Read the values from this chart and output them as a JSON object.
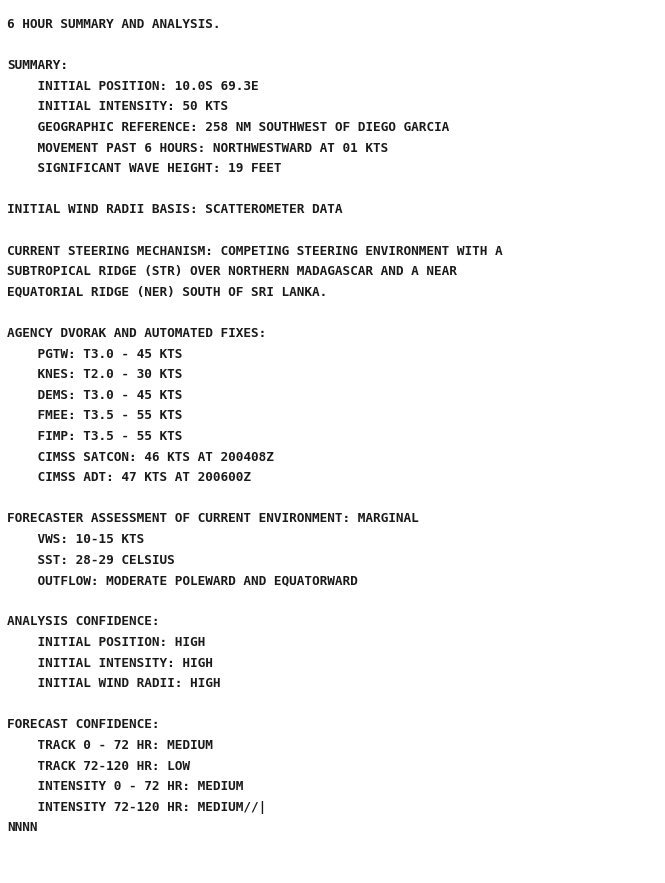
{
  "background_color": "#ffffff",
  "text_color": "#1a1a1a",
  "font_family": "DejaVu Sans Mono",
  "font_size": 9.2,
  "fig_width": 6.65,
  "fig_height": 8.83,
  "dpi": 100,
  "lines": [
    {
      "text": "6 HOUR SUMMARY AND ANALYSIS.",
      "indent": false
    },
    {
      "text": "",
      "indent": false
    },
    {
      "text": "SUMMARY:",
      "indent": false
    },
    {
      "text": "INITIAL POSITION: 10.0S 69.3E",
      "indent": true
    },
    {
      "text": "INITIAL INTENSITY: 50 KTS",
      "indent": true
    },
    {
      "text": "GEOGRAPHIC REFERENCE: 258 NM SOUTHWEST OF DIEGO GARCIA",
      "indent": true
    },
    {
      "text": "MOVEMENT PAST 6 HOURS: NORTHWESTWARD AT 01 KTS",
      "indent": true
    },
    {
      "text": "SIGNIFICANT WAVE HEIGHT: 19 FEET",
      "indent": true
    },
    {
      "text": "",
      "indent": false
    },
    {
      "text": "INITIAL WIND RADII BASIS: SCATTEROMETER DATA",
      "indent": false
    },
    {
      "text": "",
      "indent": false
    },
    {
      "text": "CURRENT STEERING MECHANISM: COMPETING STEERING ENVIRONMENT WITH A",
      "indent": false
    },
    {
      "text": "SUBTROPICAL RIDGE (STR) OVER NORTHERN MADAGASCAR AND A NEAR",
      "indent": false
    },
    {
      "text": "EQUATORIAL RIDGE (NER) SOUTH OF SRI LANKA.",
      "indent": false
    },
    {
      "text": "",
      "indent": false
    },
    {
      "text": "AGENCY DVORAK AND AUTOMATED FIXES:",
      "indent": false
    },
    {
      "text": "PGTW: T3.0 - 45 KTS",
      "indent": true
    },
    {
      "text": "KNES: T2.0 - 30 KTS",
      "indent": true
    },
    {
      "text": "DEMS: T3.0 - 45 KTS",
      "indent": true
    },
    {
      "text": "FMEE: T3.5 - 55 KTS",
      "indent": true
    },
    {
      "text": "FIMP: T3.5 - 55 KTS",
      "indent": true
    },
    {
      "text": "CIMSS SATCON: 46 KTS AT 200408Z",
      "indent": true
    },
    {
      "text": "CIMSS ADT: 47 KTS AT 200600Z",
      "indent": true
    },
    {
      "text": "",
      "indent": false
    },
    {
      "text": "FORECASTER ASSESSMENT OF CURRENT ENVIRONMENT: MARGINAL",
      "indent": false
    },
    {
      "text": "VWS: 10-15 KTS",
      "indent": true
    },
    {
      "text": "SST: 28-29 CELSIUS",
      "indent": true
    },
    {
      "text": "OUTFLOW: MODERATE POLEWARD AND EQUATORWARD",
      "indent": true
    },
    {
      "text": "",
      "indent": false
    },
    {
      "text": "ANALYSIS CONFIDENCE:",
      "indent": false
    },
    {
      "text": "INITIAL POSITION: HIGH",
      "indent": true
    },
    {
      "text": "INITIAL INTENSITY: HIGH",
      "indent": true
    },
    {
      "text": "INITIAL WIND RADII: HIGH",
      "indent": true
    },
    {
      "text": "",
      "indent": false
    },
    {
      "text": "FORECAST CONFIDENCE:",
      "indent": false
    },
    {
      "text": "TRACK 0 - 72 HR: MEDIUM",
      "indent": true
    },
    {
      "text": "TRACK 72-120 HR: LOW",
      "indent": true
    },
    {
      "text": "INTENSITY 0 - 72 HR: MEDIUM",
      "indent": true
    },
    {
      "text": "INTENSITY 72-120 HR: MEDIUM//|",
      "indent": true
    },
    {
      "text": "NNNN",
      "indent": false
    }
  ],
  "indent_spaces": "    "
}
